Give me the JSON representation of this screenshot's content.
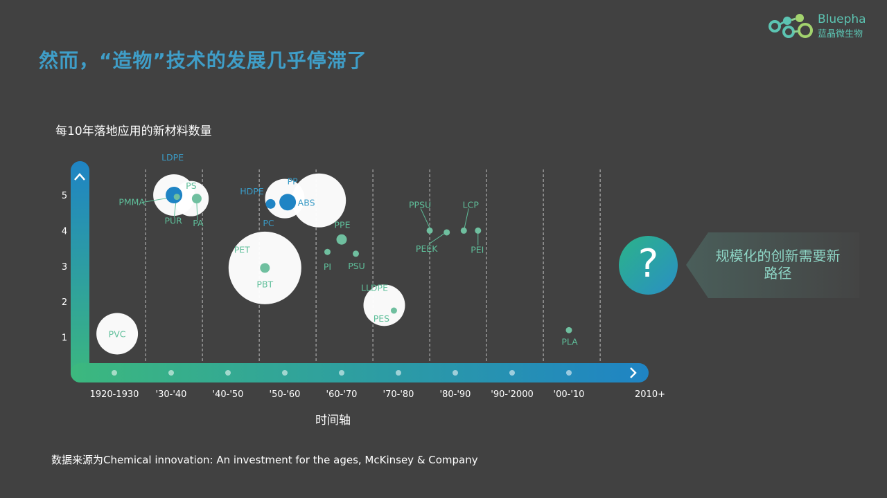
{
  "slide": {
    "title": "然而，“造物”技术的发展几乎停滞了",
    "source_note": "数据来源为Chemical innovation: An investment for the ages, McKinsey & Company",
    "brand": {
      "name": "Bluepha",
      "subtitle": "蓝晶微生物"
    },
    "callout": {
      "question_mark": "?",
      "text": "规模化的创新需要新路径"
    }
  },
  "colors": {
    "background": "#414141",
    "title": "#3f9ec8",
    "axis_gradient_start": "#3cb87e",
    "axis_gradient_end": "#1f84c4",
    "teal_dot": "#6fbf9f",
    "blue_dot": "#1f84c4",
    "bubble_fill": "#ffffff",
    "grid_line": "#e0e0e0",
    "label_blue": "#3a9bc6",
    "label_green": "#5fbf9a"
  },
  "chart_data": {
    "type": "scatter",
    "title": "每10年落地应用的新材料数量",
    "xlabel": "时间轴",
    "ylabel": "",
    "categories": [
      "1920-1930",
      "'30-'40",
      "'40-'50",
      "'50-'60",
      "'60-'70",
      "'70-'80",
      "'80-'90",
      "'90-'2000",
      "'00-'10",
      "2010+"
    ],
    "y_ticks": [
      1,
      2,
      3,
      4,
      5
    ],
    "ylim": [
      0,
      5.5
    ],
    "grid": "dashed vertical separators between decades",
    "bubbles": [
      {
        "decade": "1920-1930",
        "center": 0.05,
        "count": 1.1,
        "size": 1.0
      },
      {
        "decade": "'30-'40",
        "center": 0.05,
        "count": 5.0,
        "size": 1.0
      },
      {
        "decade": "'30-'40",
        "center": 0.35,
        "count": 4.9,
        "size": 0.85
      },
      {
        "decade": "'40-'50",
        "center": 0.65,
        "count": 2.95,
        "size": 1.75
      },
      {
        "decade": "'50-'60",
        "center": 0.0,
        "count": 4.9,
        "size": 0.95
      },
      {
        "decade": "'50-'60",
        "center": 0.6,
        "count": 4.85,
        "size": 1.3
      },
      {
        "decade": "'70-'80",
        "center": -0.25,
        "count": 1.9,
        "size": 1.0
      }
    ],
    "points": [
      {
        "label": "PVC",
        "decade": "1920-1930",
        "offset": 0.05,
        "count": 1.1,
        "dot": false,
        "color": "teal"
      },
      {
        "label": "LDPE",
        "decade": "'30-'40",
        "offset": 0.05,
        "count": 5.0,
        "dot": true,
        "color": "blue"
      },
      {
        "label": "PMMA",
        "decade": "'30-'40",
        "offset": 0.1,
        "count": 4.95,
        "dot": true,
        "color": "teal"
      },
      {
        "label": "PUR",
        "decade": "'30-'40",
        "offset": 0.1,
        "count": 4.95,
        "dot": false,
        "color": "teal"
      },
      {
        "label": "PS",
        "decade": "'30-'40",
        "offset": 0.45,
        "count": 4.9,
        "dot": true,
        "color": "teal"
      },
      {
        "label": "PA",
        "decade": "'30-'40",
        "offset": 0.45,
        "count": 4.9,
        "dot": false,
        "color": "teal"
      },
      {
        "label": "PET",
        "decade": "'40-'50",
        "offset": 0.65,
        "count": 2.95,
        "dot": false,
        "color": "teal"
      },
      {
        "label": "PBT",
        "decade": "'40-'50",
        "offset": 0.65,
        "count": 2.95,
        "dot": true,
        "color": "teal"
      },
      {
        "label": "HDPE",
        "decade": "'50-'60",
        "offset": -0.25,
        "count": 4.75,
        "dot": true,
        "color": "blue"
      },
      {
        "label": "PC",
        "decade": "'50-'60",
        "offset": -0.25,
        "count": 4.75,
        "dot": false,
        "color": "blue"
      },
      {
        "label": "PP",
        "decade": "'50-'60",
        "offset": 0.05,
        "count": 4.8,
        "dot": true,
        "color": "blue"
      },
      {
        "label": "ABS",
        "decade": "'50-'60",
        "offset": 0.05,
        "count": 4.8,
        "dot": false,
        "color": "blue"
      },
      {
        "label": "PPE",
        "decade": "'60-'70",
        "offset": 0.0,
        "count": 3.75,
        "dot": true,
        "color": "teal"
      },
      {
        "label": "PI",
        "decade": "'60-'70",
        "offset": -0.25,
        "count": 3.4,
        "dot": true,
        "color": "teal"
      },
      {
        "label": "PSU",
        "decade": "'60-'70",
        "offset": 0.25,
        "count": 3.35,
        "dot": true,
        "color": "teal"
      },
      {
        "label": "LLDPE",
        "decade": "'70-'80",
        "offset": -0.25,
        "count": 1.9,
        "dot": false,
        "color": "teal"
      },
      {
        "label": "PES",
        "decade": "'70-'80",
        "offset": -0.08,
        "count": 1.75,
        "dot": true,
        "color": "teal"
      },
      {
        "label": "PPSU",
        "decade": "'80-'90",
        "offset": -0.45,
        "count": 4.0,
        "dot": true,
        "color": "teal"
      },
      {
        "label": "PEEK",
        "decade": "'80-'90",
        "offset": -0.15,
        "count": 3.95,
        "dot": true,
        "color": "teal"
      },
      {
        "label": "LCP",
        "decade": "'80-'90",
        "offset": 0.15,
        "count": 4.0,
        "dot": true,
        "color": "teal"
      },
      {
        "label": "PEI",
        "decade": "'80-'90",
        "offset": 0.4,
        "count": 4.0,
        "dot": true,
        "color": "teal"
      },
      {
        "label": "PLA",
        "decade": "'00-'10",
        "offset": 0.0,
        "count": 1.2,
        "dot": true,
        "color": "teal"
      }
    ]
  }
}
